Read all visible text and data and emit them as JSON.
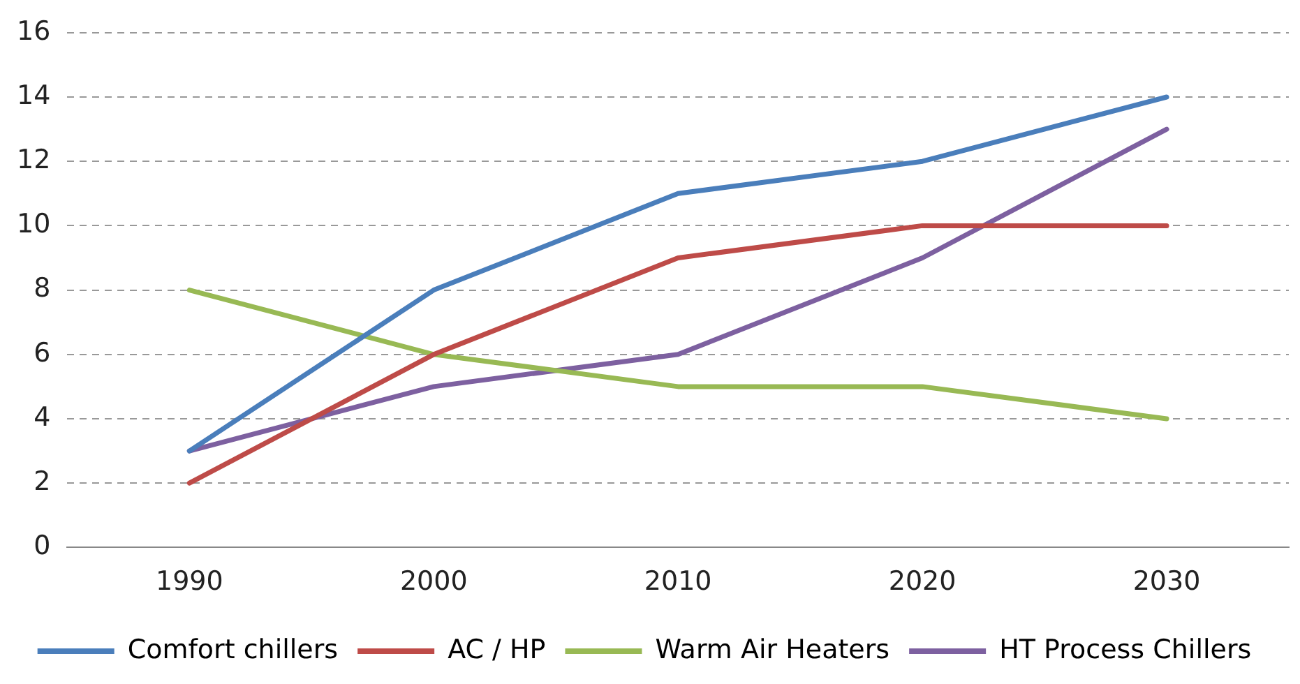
{
  "chart_data": {
    "type": "line",
    "categories": [
      "1990",
      "2000",
      "2010",
      "2020",
      "2030"
    ],
    "series": [
      {
        "name": "Comfort chillers",
        "color": "#4a7ebb",
        "values": [
          3,
          8,
          11,
          12,
          14
        ]
      },
      {
        "name": "AC / HP",
        "color": "#be4b48",
        "values": [
          2,
          6,
          9,
          10,
          10
        ]
      },
      {
        "name": "Warm Air Heaters",
        "color": "#98b954",
        "values": [
          8,
          6,
          5,
          5,
          4
        ]
      },
      {
        "name": "HT Process Chillers",
        "color": "#7d60a0",
        "values": [
          3,
          5,
          6,
          9,
          13
        ]
      }
    ],
    "ylim": [
      0,
      16
    ],
    "yticks": [
      0,
      2,
      4,
      6,
      8,
      10,
      12,
      14,
      16
    ],
    "grid": "y",
    "legend": "bottom",
    "marker": "none",
    "line_style": "solid"
  }
}
